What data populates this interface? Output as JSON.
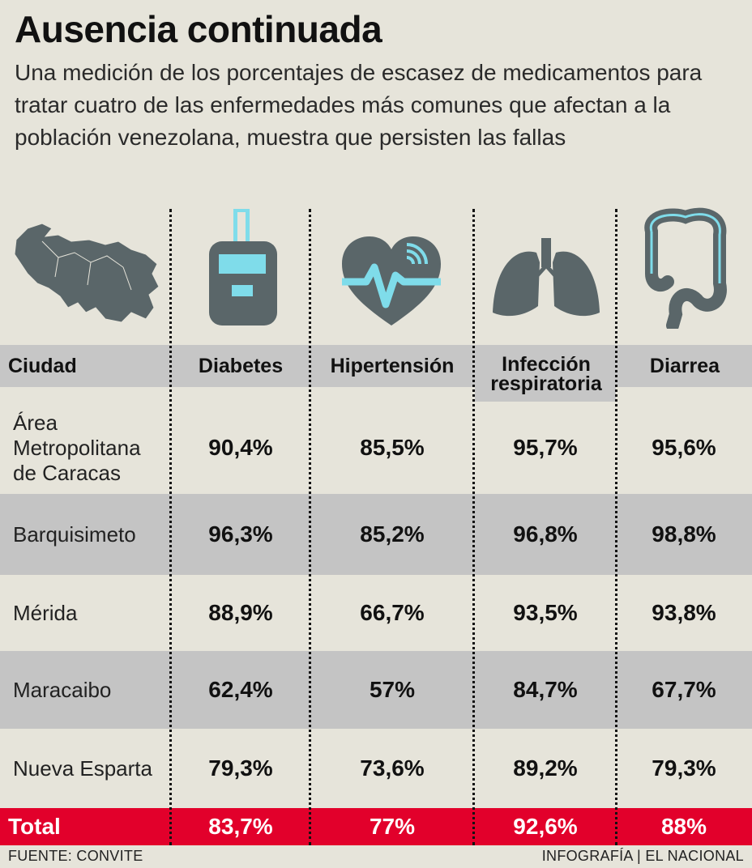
{
  "header": {
    "title": "Ausencia continuada",
    "subtitle": "Una medición de los porcentajes de escasez de medicamentos para tratar cuatro de las enfermedades más comunes que afectan a la población venezolana, muestra que persisten las fallas"
  },
  "icons": [
    "venezuela-map-icon",
    "glucometer-icon",
    "heart-pulse-icon",
    "lungs-icon",
    "intestine-icon"
  ],
  "colors": {
    "background": "#e6e4da",
    "stripe": "#c4c4c4",
    "total": "#e2002b",
    "icon": "#5a6669",
    "accent": "#7fdcea"
  },
  "chart_data": {
    "type": "table",
    "columns": [
      "Ciudad",
      "Diabetes",
      "Hipertensión",
      "Infección respiratoria",
      "Diarrea"
    ],
    "rows": [
      {
        "city": "Área Metropolitana de Caracas",
        "values": [
          "90,4%",
          "85,5%",
          "95,7%",
          "95,6%"
        ]
      },
      {
        "city": "Barquisimeto",
        "values": [
          "96,3%",
          "85,2%",
          "96,8%",
          "98,8%"
        ]
      },
      {
        "city": "Mérida",
        "values": [
          "88,9%",
          "66,7%",
          "93,5%",
          "93,8%"
        ]
      },
      {
        "city": "Maracaibo",
        "values": [
          "62,4%",
          "57%",
          "84,7%",
          "67,7%"
        ]
      },
      {
        "city": "Nueva Esparta",
        "values": [
          "79,3%",
          "73,6%",
          "89,2%",
          "79,3%"
        ]
      }
    ],
    "total": {
      "label": "Total",
      "values": [
        "83,7%",
        "77%",
        "92,6%",
        "88%"
      ]
    }
  },
  "footer": {
    "source": "FUENTE: CONVITE",
    "credit": "INFOGRAFÍA | EL NACIONAL"
  }
}
